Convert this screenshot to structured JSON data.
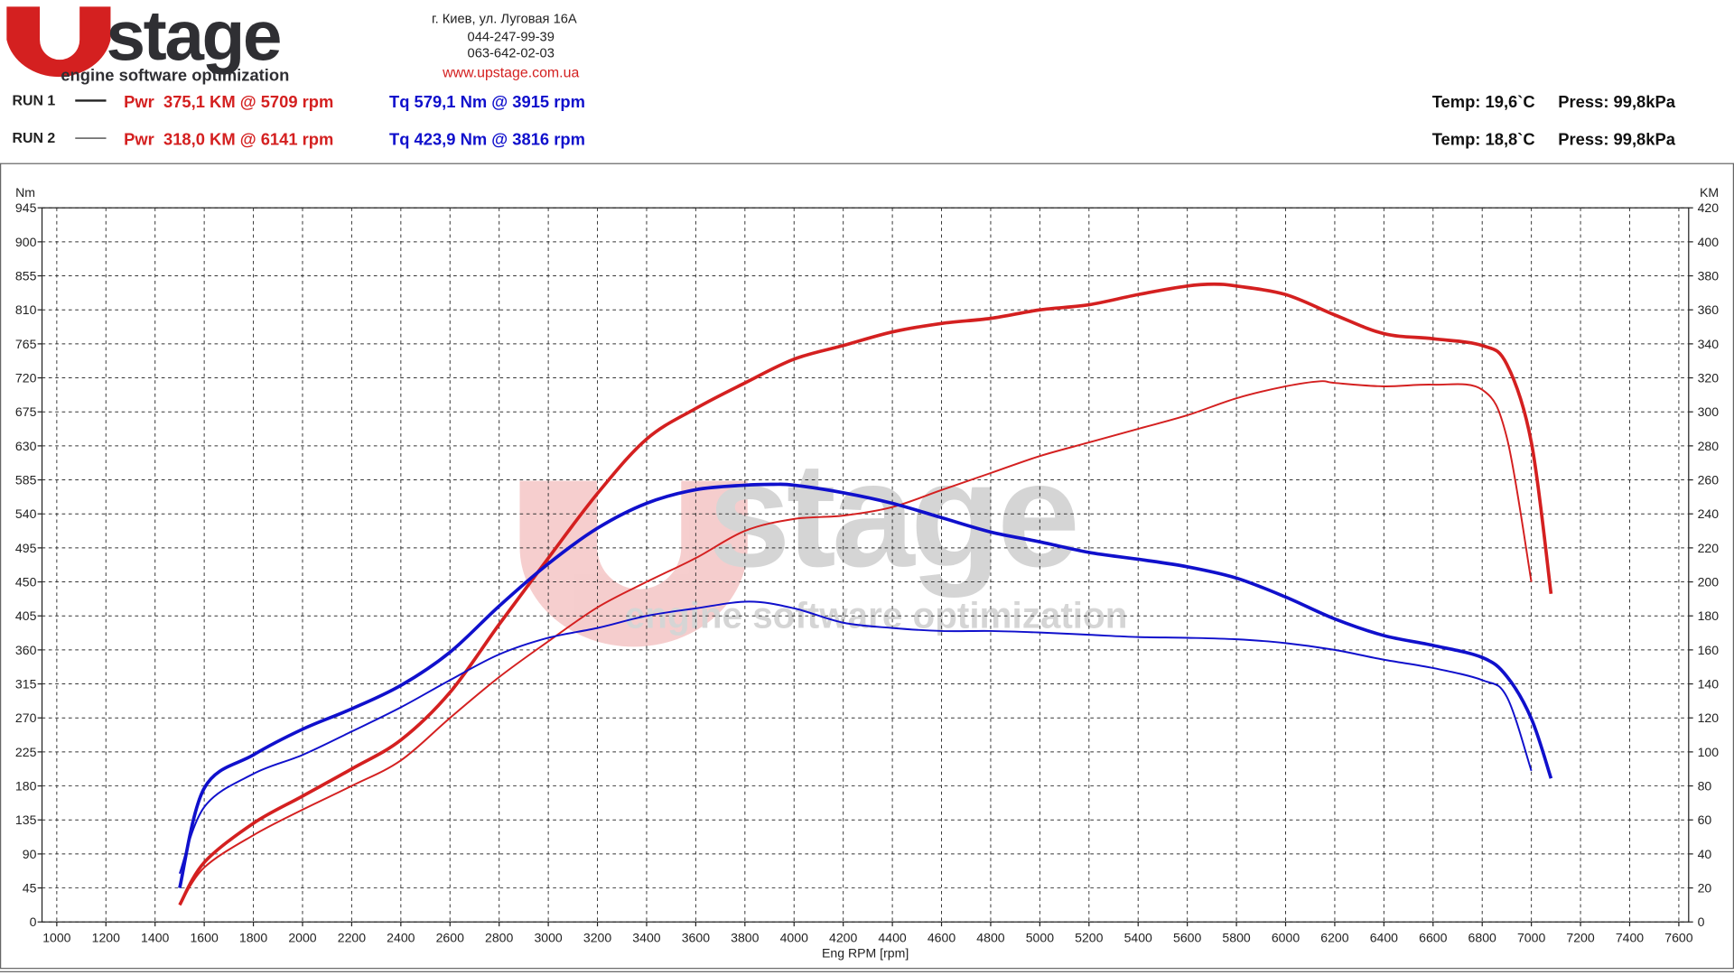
{
  "header": {
    "logo": {
      "brand": "stage",
      "tagline": "engine software optimization"
    },
    "address": "г. Киев, ул. Луговая 16А",
    "phone1": "044-247-99-39",
    "phone2": "063-642-02-03",
    "website": "www.upstage.com.ua"
  },
  "runs": [
    {
      "label": "RUN 1",
      "power": "Pwr  375,1 KM @ 5709 rpm",
      "torque": "Tq 579,1 Nm @ 3915 rpm",
      "temp": "Temp: 19,6`C",
      "press": "Press: 99,8kPa"
    },
    {
      "label": "RUN 2",
      "power": "Pwr  318,0 KM @ 6141 rpm",
      "torque": "Tq 423,9 Nm @ 3816 rpm",
      "temp": "Temp: 18,8`C",
      "press": "Press: 99,8kPa"
    }
  ],
  "chart_data": {
    "type": "line",
    "x_label": "Eng RPM [rpm]",
    "y_label": "Nm",
    "y2_label": "KM",
    "xlim": [
      940,
      7640
    ],
    "xticks": [
      1000,
      1200,
      1400,
      1600,
      1800,
      2000,
      2200,
      2400,
      2600,
      2800,
      3000,
      3200,
      3400,
      3600,
      3800,
      4000,
      4200,
      4400,
      4600,
      4800,
      5000,
      5200,
      5400,
      5600,
      5800,
      6000,
      6200,
      6400,
      6600,
      6800,
      7000,
      7200,
      7400,
      7600
    ],
    "ylim": [
      0,
      945
    ],
    "yticks": [
      0,
      45,
      90,
      135,
      180,
      225,
      270,
      315,
      360,
      405,
      450,
      495,
      540,
      585,
      630,
      675,
      720,
      765,
      810,
      855,
      900,
      945
    ],
    "y2lim": [
      0,
      420
    ],
    "y2ticks": [
      0,
      20,
      40,
      60,
      80,
      100,
      120,
      140,
      160,
      180,
      200,
      220,
      240,
      260,
      280,
      300,
      320,
      340,
      360,
      380,
      400,
      420
    ],
    "grid": true,
    "series": [
      {
        "color": "#d42020",
        "line_width": 3,
        "axis": "y2",
        "x": [
          1500,
          1600,
          1800,
          2000,
          2200,
          2400,
          2600,
          2800,
          3000,
          3200,
          3400,
          3600,
          3800,
          4000,
          4200,
          4400,
          4600,
          4800,
          5000,
          5200,
          5400,
          5600,
          5709,
          5800,
          6000,
          6200,
          6400,
          6600,
          6800,
          6900,
          7000,
          7080
        ],
        "values": [
          10,
          35,
          58,
          74,
          90,
          107,
          135,
          175,
          214,
          252,
          284,
          302,
          317,
          331,
          339,
          347,
          352,
          355,
          360,
          363,
          369,
          374,
          375.1,
          374,
          369,
          357,
          346,
          343,
          339,
          328,
          282,
          193
        ]
      },
      {
        "color": "#d42020",
        "line_width": 1.6,
        "axis": "y2",
        "x": [
          1500,
          1600,
          1800,
          2000,
          2200,
          2400,
          2600,
          2800,
          3000,
          3200,
          3400,
          3600,
          3800,
          4000,
          4200,
          4400,
          4600,
          4800,
          5000,
          5200,
          5400,
          5600,
          5800,
          6000,
          6141,
          6200,
          6400,
          6600,
          6800,
          6900,
          7000
        ],
        "values": [
          10,
          32,
          51,
          66,
          80,
          95,
          120,
          144,
          165,
          185,
          200,
          214,
          230,
          237,
          239,
          244,
          254,
          264,
          274,
          282,
          290,
          298,
          308,
          315,
          318,
          317,
          315,
          316,
          313,
          285,
          200
        ]
      },
      {
        "color": "#1010cc",
        "line_width": 3,
        "x": [
          1500,
          1600,
          1800,
          2000,
          2200,
          2400,
          2600,
          2800,
          3000,
          3200,
          3400,
          3600,
          3800,
          3915,
          4000,
          4200,
          4400,
          4600,
          4800,
          5000,
          5200,
          5400,
          5600,
          5800,
          6000,
          6200,
          6400,
          6600,
          6800,
          6900,
          7000,
          7080
        ],
        "values": [
          45,
          177,
          221,
          255,
          282,
          313,
          357,
          418,
          474,
          521,
          554,
          572,
          578,
          579.1,
          578,
          568,
          554,
          535,
          516,
          503,
          489,
          480,
          470,
          455,
          430,
          401,
          379,
          366,
          350,
          325,
          269,
          190
        ]
      },
      {
        "color": "#1010cc",
        "line_width": 1.6,
        "x": [
          1500,
          1600,
          1800,
          2000,
          2200,
          2400,
          2600,
          2800,
          3000,
          3200,
          3400,
          3600,
          3816,
          4000,
          4200,
          4400,
          4600,
          4800,
          5000,
          5200,
          5400,
          5600,
          5800,
          6000,
          6200,
          6400,
          6600,
          6800,
          6900,
          7000
        ],
        "values": [
          64,
          152,
          196,
          221,
          252,
          284,
          320,
          354,
          376,
          389,
          405,
          415,
          423.9,
          415,
          396,
          389,
          385,
          385,
          383,
          380,
          377,
          376,
          374,
          369,
          360,
          347,
          336,
          320,
          298,
          200
        ]
      }
    ]
  }
}
